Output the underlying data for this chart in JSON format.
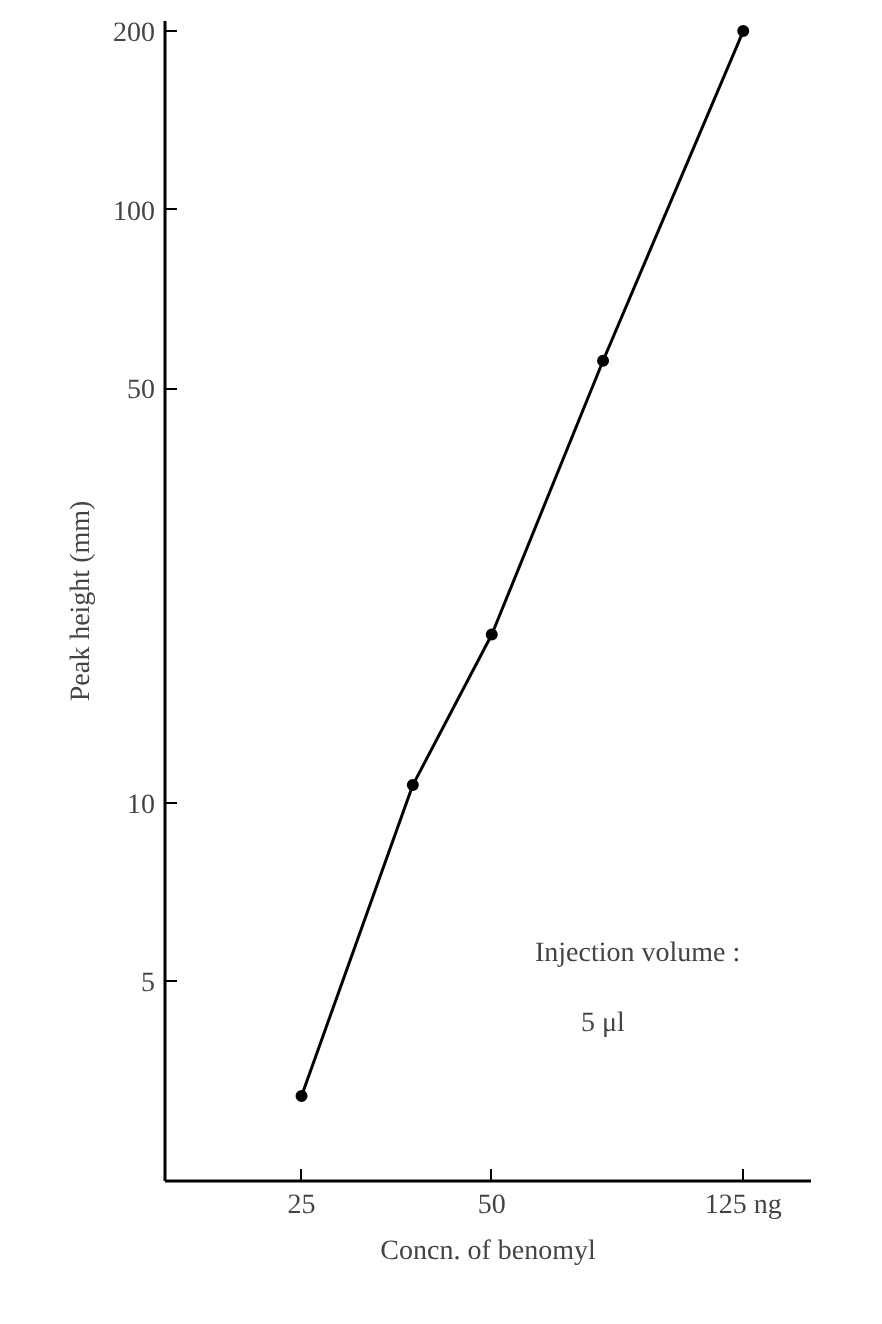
{
  "chart_data": {
    "type": "line",
    "xlabel": "Concn. of benomyl",
    "ylabel": "Peak height (mm)",
    "log": "xy",
    "marker": "circle",
    "line_style": "solid",
    "grid": false,
    "xlim": [
      15.2,
      160
    ],
    "xticks": [
      25,
      50,
      {
        "value": 125,
        "label": "125 ng"
      }
    ],
    "ylim": [
      2.3,
      208
    ],
    "yticks": [
      5,
      10,
      50,
      100,
      200
    ],
    "series": [
      {
        "color": "#000000",
        "x": [
          25,
          37.5,
          50,
          75,
          125
        ],
        "values": [
          3.2,
          10.7,
          19.2,
          55.6,
          200
        ]
      }
    ],
    "annotations": [
      "Injection volume :",
      "5 μl"
    ]
  }
}
